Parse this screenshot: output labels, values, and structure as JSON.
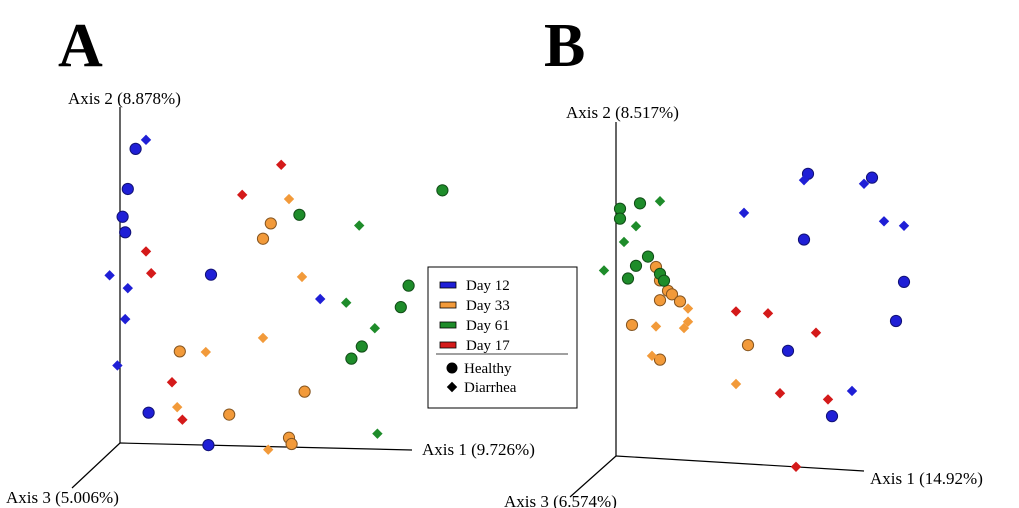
{
  "panels": {
    "A": {
      "label": "A",
      "axis1": "Axis 1 (9.726%)",
      "axis2": "Axis 2 (8.878%)",
      "axis3": "Axis 3 (5.006%)"
    },
    "B": {
      "label": "B",
      "axis1": "Axis 1 (14.92%)",
      "axis2": "Axis 2 (8.517%)",
      "axis3": "Axis 3 (6.574%)"
    }
  },
  "legend": {
    "groups": [
      {
        "label": "Day 12",
        "color": "#1f1fd6"
      },
      {
        "label": "Day 33",
        "color": "#f29a3a"
      },
      {
        "label": "Day 61",
        "color": "#1e8c2a"
      },
      {
        "label": "Day 17",
        "color": "#d41a1a"
      }
    ],
    "shapes": [
      {
        "label": "Healthy",
        "shape": "circle"
      },
      {
        "label": "Diarrhea",
        "shape": "diamond"
      }
    ]
  },
  "chart_data": [
    {
      "type": "scatter",
      "title": "A",
      "xlabel": "Axis 1 (9.726%)",
      "ylabel": "Axis 2 (8.878%)",
      "zlabel": "Axis 3 (5.006%)",
      "series": [
        {
          "name": "Day 12",
          "shape": "circle",
          "color": "#1f1fd6",
          "x": [
            6,
            1,
            3,
            2,
            35,
            11,
            34
          ],
          "y": [
            95,
            73,
            82,
            68,
            55,
            10,
            0
          ]
        },
        {
          "name": "Day 12",
          "shape": "diamond",
          "color": "#1f1fd6",
          "x": [
            10,
            -4,
            3,
            2,
            -1,
            77
          ],
          "y": [
            98,
            54,
            50,
            40,
            25,
            48
          ]
        },
        {
          "name": "Day 33",
          "shape": "circle",
          "color": "#f29a3a",
          "x": [
            58,
            55,
            23,
            71,
            42,
            65,
            66
          ],
          "y": [
            72,
            67,
            30,
            18,
            10,
            3,
            1
          ]
        },
        {
          "name": "Day 33",
          "shape": "diamond",
          "color": "#f29a3a",
          "x": [
            65,
            70,
            55,
            33,
            22,
            57
          ],
          "y": [
            80,
            55,
            35,
            30,
            12,
            -1
          ]
        },
        {
          "name": "Day 61",
          "shape": "circle",
          "color": "#1e8c2a",
          "x": [
            69,
            124,
            111,
            108,
            93,
            89
          ],
          "y": [
            75,
            84,
            53,
            46,
            33,
            29
          ]
        },
        {
          "name": "Day 61",
          "shape": "diamond",
          "color": "#1e8c2a",
          "x": [
            92,
            87,
            98,
            99
          ],
          "y": [
            72,
            47,
            39,
            5
          ]
        },
        {
          "name": "Day 17",
          "shape": "diamond",
          "color": "#d41a1a",
          "x": [
            62,
            47,
            10,
            12,
            20,
            24
          ],
          "y": [
            91,
            81,
            62,
            55,
            20,
            8
          ]
        }
      ]
    },
    {
      "type": "scatter",
      "title": "B",
      "xlabel": "Axis 1 (14.92%)",
      "ylabel": "Axis 2 (8.517%)",
      "zlabel": "Axis 3 (6.574%)",
      "series": [
        {
          "name": "Day 12",
          "shape": "circle",
          "color": "#1f1fd6",
          "x": [
            48,
            64,
            47,
            72,
            70,
            43,
            54
          ],
          "y": [
            89,
            89,
            69,
            58,
            46,
            35,
            16
          ]
        },
        {
          "name": "Day 12",
          "shape": "diamond",
          "color": "#1f1fd6",
          "x": [
            47,
            62,
            67,
            72,
            32,
            59
          ],
          "y": [
            87,
            87,
            76,
            75,
            76,
            24
          ]
        },
        {
          "name": "Day 33",
          "shape": "circle",
          "color": "#f29a3a",
          "x": [
            10,
            11,
            13,
            14,
            16,
            11,
            4,
            33,
            11
          ],
          "y": [
            58,
            54,
            51,
            50,
            48,
            48,
            40,
            36,
            30
          ]
        },
        {
          "name": "Day 33",
          "shape": "diamond",
          "color": "#f29a3a",
          "x": [
            18,
            18,
            10,
            17,
            9,
            30
          ],
          "y": [
            46,
            42,
            40,
            40,
            31,
            24
          ]
        },
        {
          "name": "Day 61",
          "shape": "circle",
          "color": "#1e8c2a",
          "x": [
            1,
            1,
            6,
            8,
            5,
            11,
            12,
            3
          ],
          "y": [
            75,
            72,
            77,
            61,
            58,
            56,
            54,
            54
          ]
        },
        {
          "name": "Day 61",
          "shape": "diamond",
          "color": "#1e8c2a",
          "x": [
            11,
            5,
            2,
            -3
          ],
          "y": [
            78,
            70,
            65,
            56
          ]
        },
        {
          "name": "Day 17",
          "shape": "diamond",
          "color": "#d41a1a",
          "x": [
            30,
            38,
            50,
            53,
            41,
            45
          ],
          "y": [
            46,
            46,
            41,
            21,
            22,
            0
          ]
        }
      ]
    }
  ]
}
